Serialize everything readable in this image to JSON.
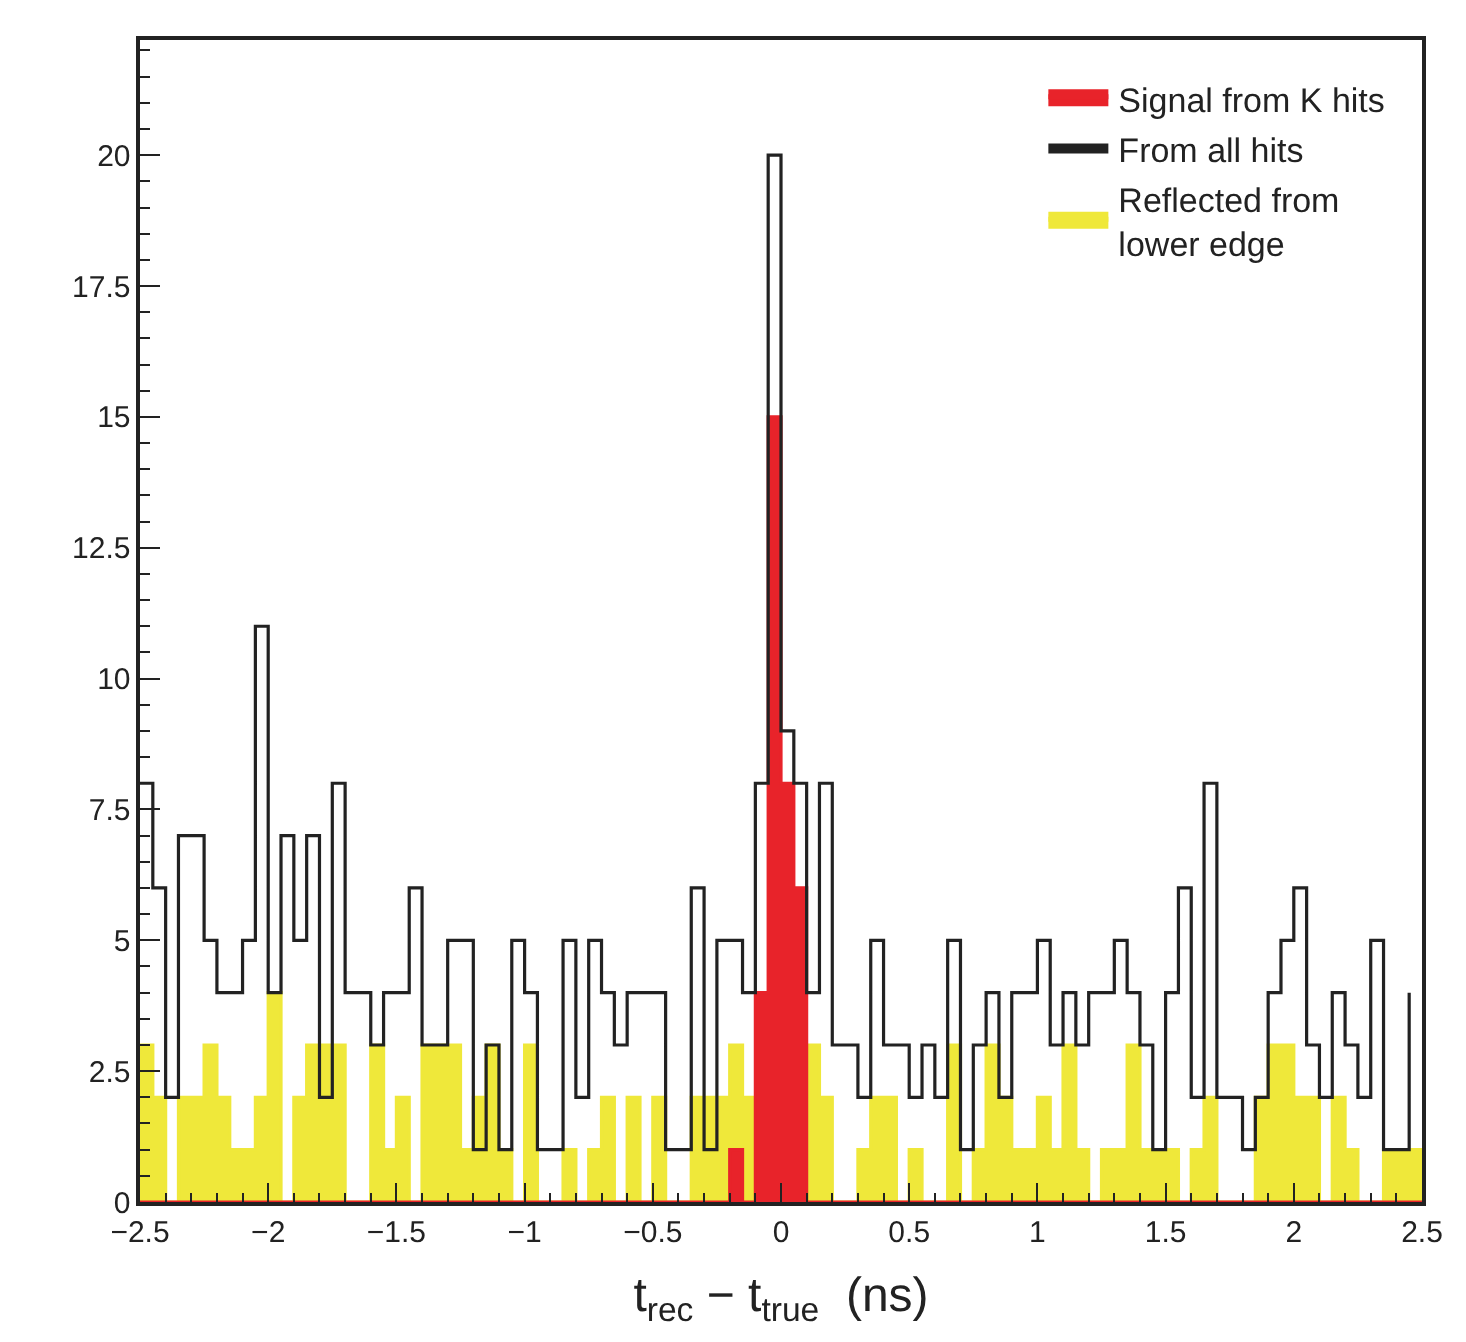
{
  "chart_data": {
    "type": "histogram",
    "xlabel": "t$_{rec}$ − t$_{true}$  (ns)",
    "bins": [
      -2.5,
      -2.45,
      -2.4,
      -2.35,
      -2.3,
      -2.25,
      -2.2,
      -2.15,
      -2.1,
      -2.05,
      -2.0,
      -1.95,
      -1.9,
      -1.85,
      -1.8,
      -1.75,
      -1.7,
      -1.65,
      -1.6,
      -1.55,
      -1.5,
      -1.45,
      -1.4,
      -1.35,
      -1.3,
      -1.25,
      -1.2,
      -1.15,
      -1.1,
      -1.05,
      -1.0,
      -0.95,
      -0.9,
      -0.85,
      -0.8,
      -0.75,
      -0.7,
      -0.65,
      -0.6,
      -0.55,
      -0.5,
      -0.45,
      -0.4,
      -0.35,
      -0.3,
      -0.25,
      -0.2,
      -0.15,
      -0.1,
      -0.05,
      0.0,
      0.05,
      0.1,
      0.15,
      0.2,
      0.25,
      0.3,
      0.35,
      0.4,
      0.45,
      0.5,
      0.55,
      0.6,
      0.65,
      0.7,
      0.75,
      0.8,
      0.85,
      0.9,
      0.95,
      1.0,
      1.05,
      1.1,
      1.15,
      1.2,
      1.25,
      1.3,
      1.35,
      1.4,
      1.45,
      1.5,
      1.55,
      1.6,
      1.65,
      1.7,
      1.75,
      1.8,
      1.85,
      1.9,
      1.95,
      2.0,
      2.05,
      2.1,
      2.15,
      2.2,
      2.25,
      2.3,
      2.35,
      2.4,
      2.45,
      2.5
    ],
    "series": [
      {
        "name": "Signal from K hits",
        "color": "#e8232a",
        "values": [
          0,
          0,
          0,
          0,
          0,
          0,
          0,
          0,
          0,
          0,
          0,
          0,
          0,
          0,
          0,
          0,
          0,
          0,
          0,
          0,
          0,
          0,
          0,
          0,
          0,
          0,
          0,
          0,
          0,
          0,
          0,
          0,
          0,
          0,
          0,
          0,
          0,
          0,
          0,
          0,
          0,
          0,
          0,
          0,
          0,
          0,
          1,
          0,
          4,
          15,
          8,
          6,
          0,
          0,
          0,
          0,
          0,
          0,
          0,
          0,
          0,
          0,
          0,
          0,
          0,
          0,
          0,
          0,
          0,
          0,
          0,
          0,
          0,
          0,
          0,
          0,
          0,
          0,
          0,
          0,
          0,
          0,
          0,
          0,
          0,
          0,
          0,
          0,
          0,
          0,
          0,
          0,
          0,
          0,
          0,
          0,
          0,
          0,
          0,
          0
        ]
      },
      {
        "name": "From all hits",
        "type": "step",
        "color": "#222222",
        "x": [
          -2.5,
          -2.45,
          -2.4,
          -2.35,
          -2.3,
          -2.25,
          -2.2,
          -2.15,
          -2.1,
          -2.05,
          -2.0,
          -1.95,
          -1.9,
          -1.85,
          -1.8,
          -1.75,
          -1.7,
          -1.65,
          -1.6,
          -1.55,
          -1.5,
          -1.45,
          -1.4,
          -1.35,
          -1.3,
          -1.25,
          -1.2,
          -1.15,
          -1.1,
          -1.05,
          -1.0,
          -0.95,
          -0.9,
          -0.85,
          -0.8,
          -0.75,
          -0.7,
          -0.65,
          -0.6,
          -0.55,
          -0.5,
          -0.45,
          -0.4,
          -0.35,
          -0.3,
          -0.25,
          -0.2,
          -0.15,
          -0.1,
          -0.05,
          0.0,
          0.05,
          0.1,
          0.15,
          0.2,
          0.25,
          0.3,
          0.35,
          0.4,
          0.45,
          0.5,
          0.55,
          0.6,
          0.65,
          0.7,
          0.75,
          0.8,
          0.85,
          0.9,
          0.95,
          1.0,
          1.05,
          1.1,
          1.15,
          1.2,
          1.25,
          1.3,
          1.35,
          1.4,
          1.45,
          1.5,
          1.55,
          1.6,
          1.65,
          1.7,
          1.75,
          1.8,
          1.85,
          1.9,
          1.95,
          2.0,
          2.05,
          2.1,
          2.15,
          2.2,
          2.25,
          2.3,
          2.35,
          2.4,
          2.45
        ],
        "values": [
          8,
          6,
          2,
          7,
          7,
          5,
          4,
          4,
          5,
          11,
          4,
          7,
          5,
          7,
          2,
          8,
          4,
          4,
          3,
          4,
          4,
          6,
          3,
          3,
          5,
          5,
          1,
          3,
          1,
          5,
          4,
          1,
          1,
          5,
          2,
          5,
          4,
          3,
          4,
          4,
          4,
          1,
          1,
          6,
          1,
          5,
          5,
          4,
          8,
          20,
          9,
          8,
          4,
          8,
          3,
          3,
          2,
          5,
          3,
          3,
          2,
          3,
          2,
          5,
          1,
          3,
          4,
          2,
          4,
          4,
          5,
          3,
          4,
          3,
          4,
          4,
          5,
          4,
          3,
          1,
          4,
          6,
          2,
          8,
          2,
          2,
          1,
          2,
          4,
          5,
          6,
          3,
          2,
          4,
          3,
          2,
          5,
          1,
          1,
          4
        ]
      },
      {
        "name": "Reflected from\nlower edge",
        "color": "#efe83a",
        "values": [
          3,
          2,
          0,
          2,
          2,
          3,
          2,
          1,
          1,
          2,
          4,
          0,
          2,
          3,
          3,
          3,
          0,
          0,
          3,
          1,
          2,
          0,
          3,
          3,
          3,
          1,
          2,
          3,
          1,
          0,
          3,
          0,
          0,
          1,
          0,
          1,
          2,
          0,
          2,
          0,
          2,
          0,
          0,
          2,
          2,
          2,
          3,
          2,
          0,
          0,
          0,
          0,
          3,
          2,
          0,
          0,
          1,
          2,
          2,
          0,
          1,
          0,
          0,
          3,
          0,
          1,
          3,
          2,
          1,
          1,
          2,
          1,
          3,
          1,
          0,
          1,
          1,
          3,
          1,
          1,
          1,
          0,
          1,
          2,
          0,
          0,
          0,
          2,
          3,
          3,
          2,
          2,
          0,
          2,
          1,
          0,
          0,
          1,
          1,
          1
        ]
      }
    ],
    "xlim": [
      -2.5,
      2.5
    ],
    "xticks": [
      {
        "value": -2.5,
        "label": "−2.5"
      },
      {
        "value": -2,
        "label": "−2"
      },
      {
        "value": -1.5,
        "label": "−1.5"
      },
      {
        "value": -1,
        "label": "−1"
      },
      {
        "value": -0.5,
        "label": "−0.5"
      },
      0,
      0.5,
      1,
      1.5,
      2,
      2.5
    ],
    "ylim": [
      0,
      22.2
    ],
    "yticks": [
      0,
      2.5,
      5,
      7.5,
      10,
      12.5,
      15,
      17.5,
      20
    ],
    "legend": "top right"
  }
}
